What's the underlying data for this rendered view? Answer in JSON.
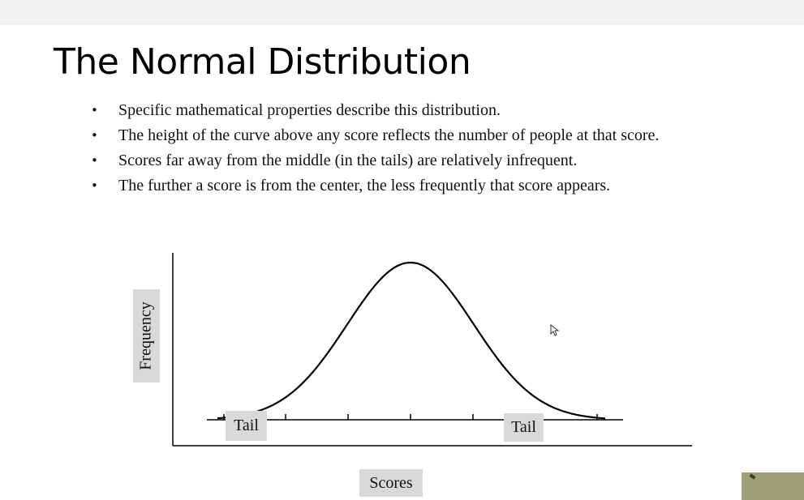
{
  "slide": {
    "title": "The Normal Distribution",
    "bullets": [
      "Specific mathematical properties describe this distribution.",
      "The height of the curve above any score reflects the number of people at that score.",
      "Scores far away from the middle (in the tails) are relatively infrequent.",
      "The further a score is from the center, the less frequently that score appears."
    ],
    "bullet_glyph": "•"
  },
  "figure": {
    "ylabel": "Frequency",
    "xlabel": "Scores",
    "tail_left_label": "Tail",
    "tail_right_label": "Tail",
    "curve_icon": "bell-curve",
    "cursor_icon": "mouse-pointer-icon"
  },
  "colors": {
    "topbar": "#f2f2f2",
    "label_box": "#d9d9d9",
    "thumbnail": "#9fa07a"
  }
}
